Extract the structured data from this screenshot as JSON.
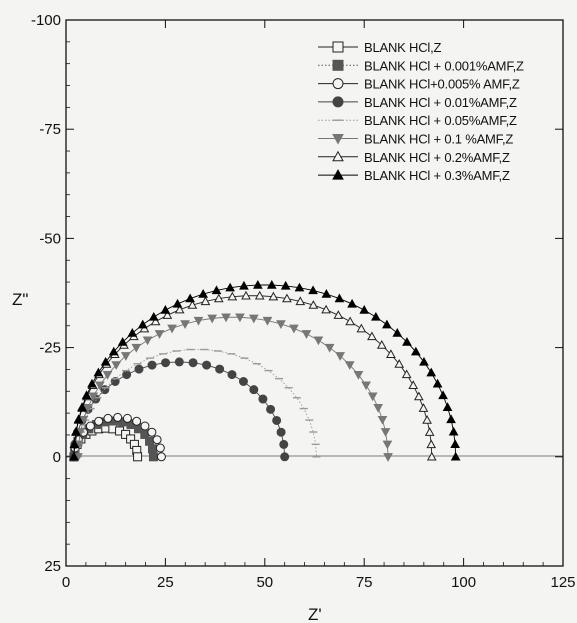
{
  "chart_data": {
    "type": "scatter",
    "title": "",
    "xlabel": "Z'",
    "ylabel": "Z\"",
    "xlim": [
      0,
      125
    ],
    "ylim": [
      -100,
      25
    ],
    "y_reversed": true,
    "x_ticks": [
      "0",
      "25",
      "50",
      "75",
      "100",
      "125"
    ],
    "y_ticks": [
      "-100",
      "-75",
      "-50",
      "-25",
      "0",
      "25"
    ],
    "legend_position": "top-right",
    "grid": false,
    "series": [
      {
        "name": "BLANK HCl,Z",
        "marker": "square-open",
        "line": "solid",
        "color": "#222222",
        "r": 8,
        "x0": 2
      },
      {
        "name": "BLANK HCl + 0.001%AMF,Z",
        "marker": "square-filled",
        "line": "dotted",
        "color": "#555555",
        "r": 10,
        "x0": 2
      },
      {
        "name": "BLANK HCl+0.005% AMF,Z",
        "marker": "circle-open",
        "line": "solid",
        "color": "#222222",
        "r": 11,
        "x0": 2
      },
      {
        "name": "BLANK HCl + 0.01%AMF,Z",
        "marker": "circle-filled",
        "line": "solid",
        "color": "#444444",
        "r": 26.5,
        "x0": 2
      },
      {
        "name": "BLANK HCl + 0.05%AMF,Z",
        "marker": "dash",
        "line": "dotted",
        "color": "#9a9a9a",
        "r": 30,
        "x0": 3
      },
      {
        "name": "BLANK HCl + 0.1 %AMF,Z",
        "marker": "triangle-down",
        "line": "solid",
        "color": "#777777",
        "r": 39,
        "x0": 3
      },
      {
        "name": "BLANK HCl + 0.2%AMF,Z",
        "marker": "triangle-open",
        "line": "solid",
        "color": "#222222",
        "r": 45,
        "x0": 2
      },
      {
        "name": "BLANK HCl + 0.3%AMF,Z",
        "marker": "triangle-filled",
        "line": "solid",
        "color": "#000000",
        "r": 48,
        "x0": 2
      }
    ]
  }
}
